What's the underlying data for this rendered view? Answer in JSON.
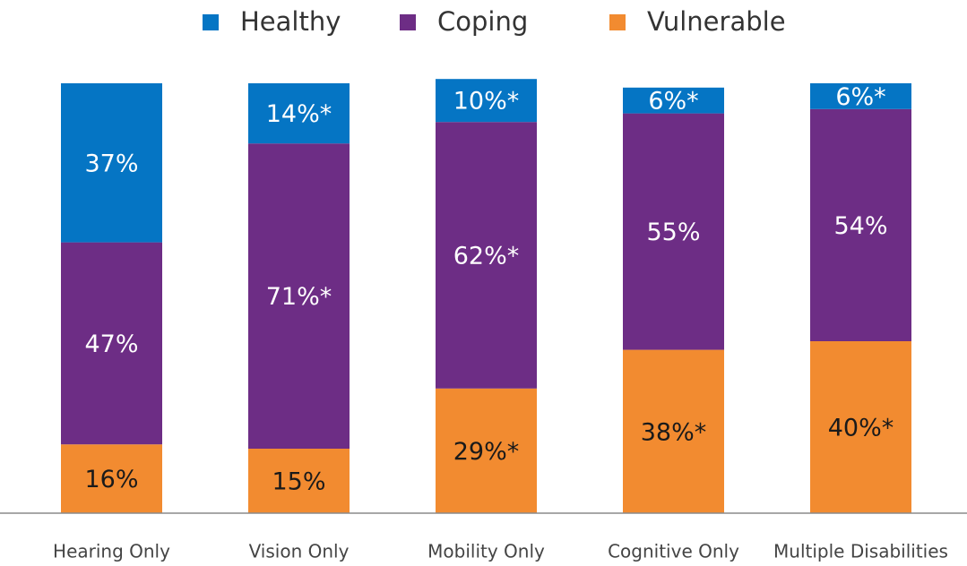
{
  "chart_data": {
    "type": "stacked_bar",
    "categories": [
      "Hearing Only",
      "Vision Only",
      "Mobility Only",
      "Cognitive Only",
      "Multiple Disabilities"
    ],
    "ylim": [
      0,
      100
    ],
    "legend": "top",
    "series": [
      {
        "name": "Healthy",
        "color": "#0575c4",
        "values": [
          37,
          14,
          10,
          6,
          6
        ],
        "value_labels": [
          "37%",
          "14%*",
          "10%*",
          "6%*",
          "6%*"
        ]
      },
      {
        "name": "Coping",
        "color": "#6d2d85",
        "values": [
          47,
          71,
          62,
          55,
          54
        ],
        "value_labels": [
          "47%",
          "71%*",
          "62%*",
          "55%",
          "54%"
        ]
      },
      {
        "name": "Vulnerable",
        "color": "#f28b30",
        "values": [
          16,
          15,
          29,
          38,
          40
        ],
        "value_labels": [
          "16%",
          "15%",
          "29%*",
          "38%*",
          "40%*"
        ]
      }
    ]
  }
}
